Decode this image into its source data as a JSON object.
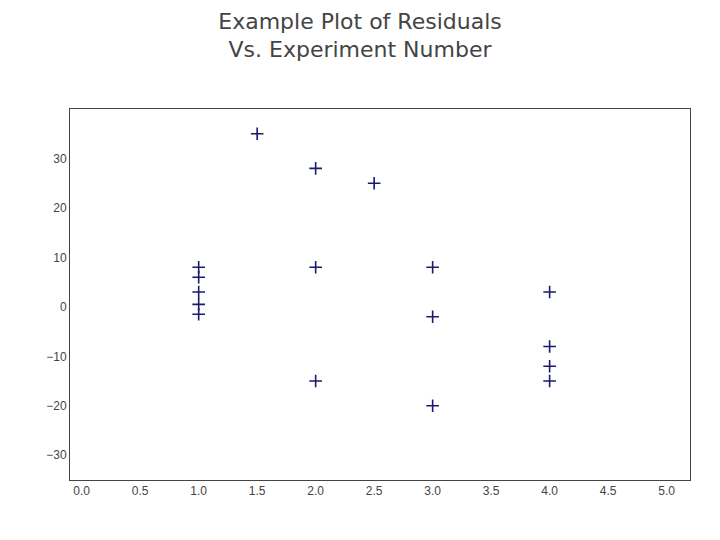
{
  "chart_data": {
    "type": "scatter",
    "title": "Example Plot of Residuals",
    "subtitle": "Vs. Experiment Number",
    "x": [
      1.5,
      2.5,
      1.0,
      1.0,
      1.0,
      1.0,
      1.0,
      2.0,
      2.0,
      2.0,
      3.0,
      3.0,
      3.0,
      4.0,
      4.0,
      4.0,
      4.0
    ],
    "values": [
      35,
      25,
      8,
      6,
      3,
      0.5,
      -1.5,
      28,
      8,
      -15,
      8,
      -2,
      -20,
      3,
      -8,
      -12,
      -15
    ],
    "color": "#1a1a6e",
    "marker": "plus",
    "xlim": [
      -0.1,
      5.2
    ],
    "ylim": [
      -35,
      40
    ],
    "xticks": [
      {
        "value": 0,
        "label": "0.0"
      },
      0.5,
      {
        "value": 1,
        "label": "1.0"
      },
      1.5,
      {
        "value": 2,
        "label": "2.0"
      },
      2.5,
      {
        "value": 3,
        "label": "3.0"
      },
      3.5,
      {
        "value": 4,
        "label": "4.0"
      },
      4.5,
      {
        "value": 5,
        "label": "5.0"
      }
    ],
    "yticks": [
      -30,
      -20,
      -10,
      0,
      10,
      20,
      30
    ],
    "grid": false
  }
}
